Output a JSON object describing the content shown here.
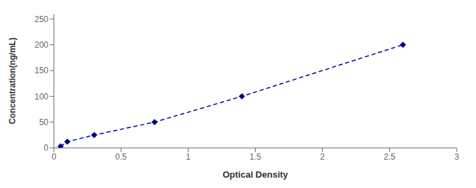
{
  "chart_data": {
    "type": "line",
    "x": [
      0.05,
      0.1,
      0.3,
      0.75,
      1.4,
      2.6
    ],
    "values": [
      3,
      12,
      25,
      50,
      100,
      200
    ],
    "color": "#00008B",
    "marker": "diamond",
    "line_style": "dashed",
    "xlabel": "Optical Density",
    "ylabel": "Concentration(ng/mL)",
    "xlim": [
      0,
      3
    ],
    "ylim": [
      0,
      260
    ],
    "xticks": [
      0,
      0.5,
      1,
      1.5,
      2,
      2.5,
      3
    ],
    "yticks": [
      0,
      50,
      100,
      150,
      200,
      250
    ],
    "grid": false
  }
}
